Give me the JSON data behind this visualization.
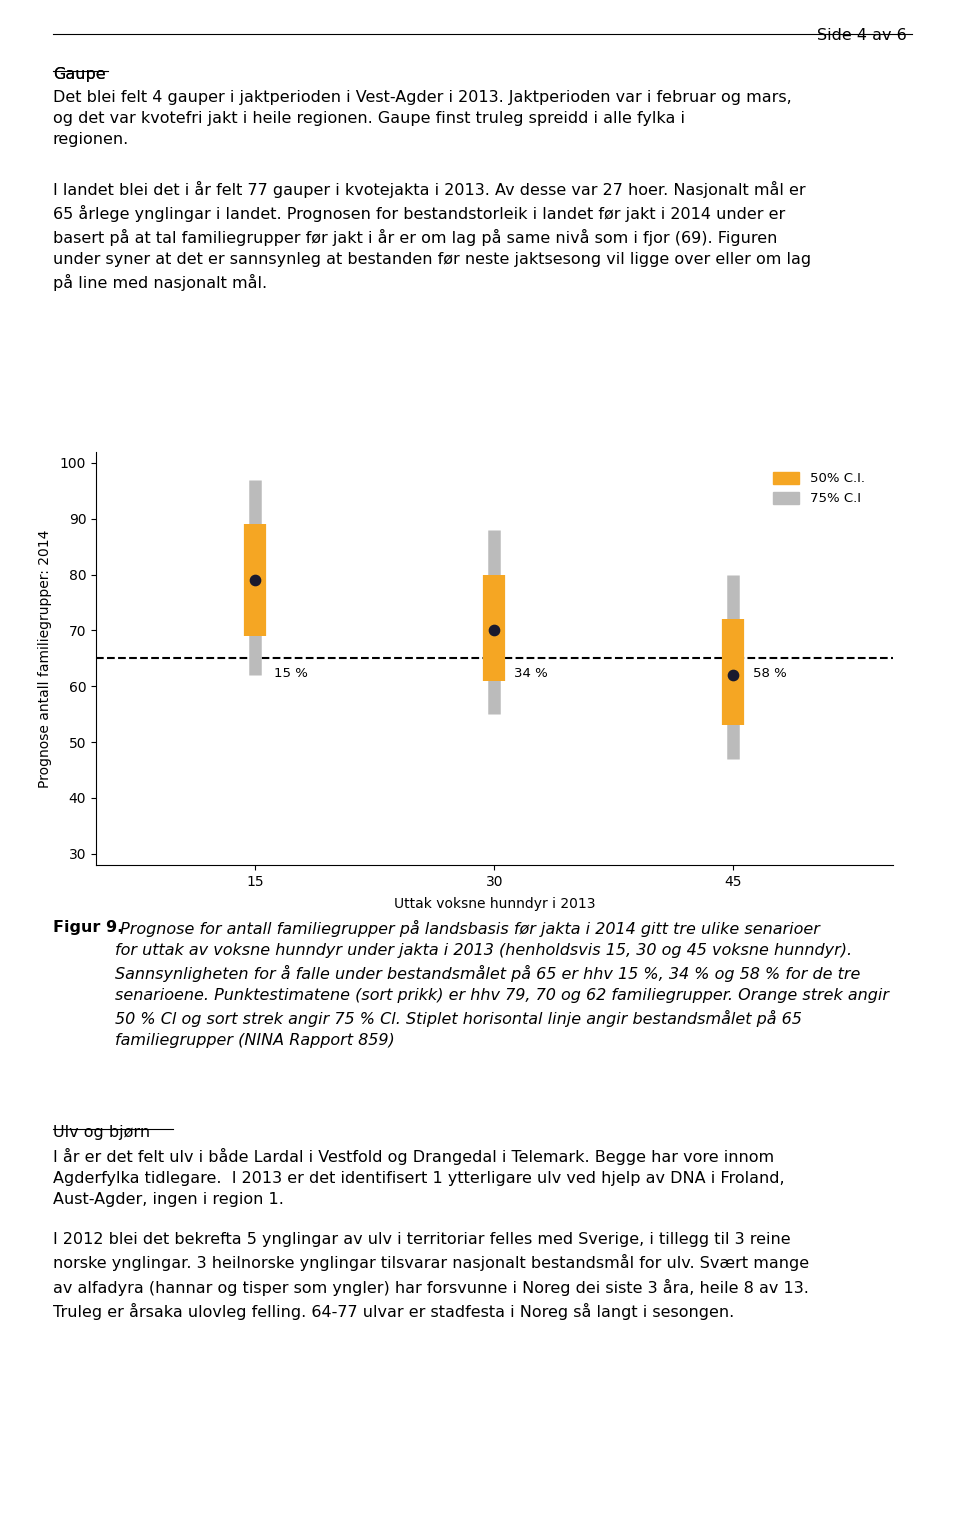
{
  "x_positions": [
    15,
    30,
    45
  ],
  "x_labels": [
    "15",
    "30",
    "45"
  ],
  "percent_labels": [
    "15 %",
    "34 %",
    "58 %"
  ],
  "ci75_low": [
    62,
    55,
    47
  ],
  "ci75_high": [
    97,
    88,
    80
  ],
  "ci50_low": [
    69,
    61,
    53
  ],
  "ci50_high": [
    89,
    80,
    72
  ],
  "medians": [
    79,
    70,
    62
  ],
  "dashed_line_y": 65,
  "ylim": [
    28,
    102
  ],
  "yticks": [
    30,
    40,
    50,
    60,
    70,
    80,
    90,
    100
  ],
  "xlim": [
    5,
    55
  ],
  "xticks": [
    15,
    30,
    45
  ],
  "xlabel": "Uttak voksne hunndyr i 2013",
  "ylabel": "Prognose antall familiegrupper: 2014",
  "legend_50_label": "50% C.I.",
  "legend_75_label": "75% C.I",
  "color_75": "#bbbbbb",
  "color_50": "#f5a623",
  "color_dot": "#1a1a2e",
  "lw_75": 9,
  "lw_50": 16,
  "dot_size": 55,
  "background_color": "#ffffff",
  "figure_width": 9.6,
  "figure_height": 15.31,
  "header_text": "Side 4 av 6",
  "gaupe_heading": "Gaupe",
  "gaupe_para1": "Det blei felt 4 gauper i jaktperioden i Vest-Agder i 2013. Jaktperioden var i februar og mars,\nog det var kvotefri jakt i heile regionen. Gaupe finst truleg spreidd i alle fylka i\nregionen.",
  "gaupe_para2": "I landet blei det i år felt 77 gauper i kvotejakta i 2013. Av desse var 27 hoer. Nasjonalt mål er\n65 årlege ynglingar i landet. Prognosen for bestandstorleik i landet før jakt i 2014 under er\nbasert på at tal familiegrupper før jakt i år er om lag på same nivå som i fjor (69). Figuren\nunder syner at det er sannsynleg at bestanden før neste jaktsesong vil ligge over eller om lag\npå line med nasjonalt mål.",
  "figur9_bold": "Figur 9.",
  "figur9_italic": " Prognose for antall familiegrupper på landsbasis før jakta i 2014 gitt tre ulike senarioer\nfor uttak av voksne hunndyr under jakta i 2013 (henholdsvis 15, 30 og 45 voksne hunndyr).\nSannsynligheten for å falle under bestandsmålet på 65 er hhv 15 %, 34 % og 58 % for de tre\nsenarioene. Punktestimatene (sort prikk) er hhv 79, 70 og 62 familiegrupper. Orange strek angir\n50 % Cl og sort strek angir 75 % Cl. Stiplet horisontal linje angir bestandsmålet på 65\nfamiliegrupper (NINA Rapport 859)",
  "ulv_heading": "Ulv og bjørn",
  "ulv_para1": "I år er det felt ulv i både Lardal i Vestfold og Drangedal i Telemark. Begge har vore innom\nAgderfylka tidlegare.  I 2013 er det identifisert 1 ytterligare ulv ved hjelp av DNA i Froland,\nAust-Agder, ingen i region 1.",
  "ulv_para2": "I 2012 blei det bekrefta 5 ynglingar av ulv i territoriar felles med Sverige, i tillegg til 3 reine\nnorske ynglingar. 3 heilnorske ynglingar tilsvarar nasjonalt bestandsmål for ulv. Svært mange\nav alfadyra (hannar og tisper som yngler) har forsvunne i Noreg dei siste 3 åra, heile 8 av 13.\nTruleg er årsaka ulovleg felling. 64-77 ulvar er stadfesta i Noreg så langt i sesongen."
}
